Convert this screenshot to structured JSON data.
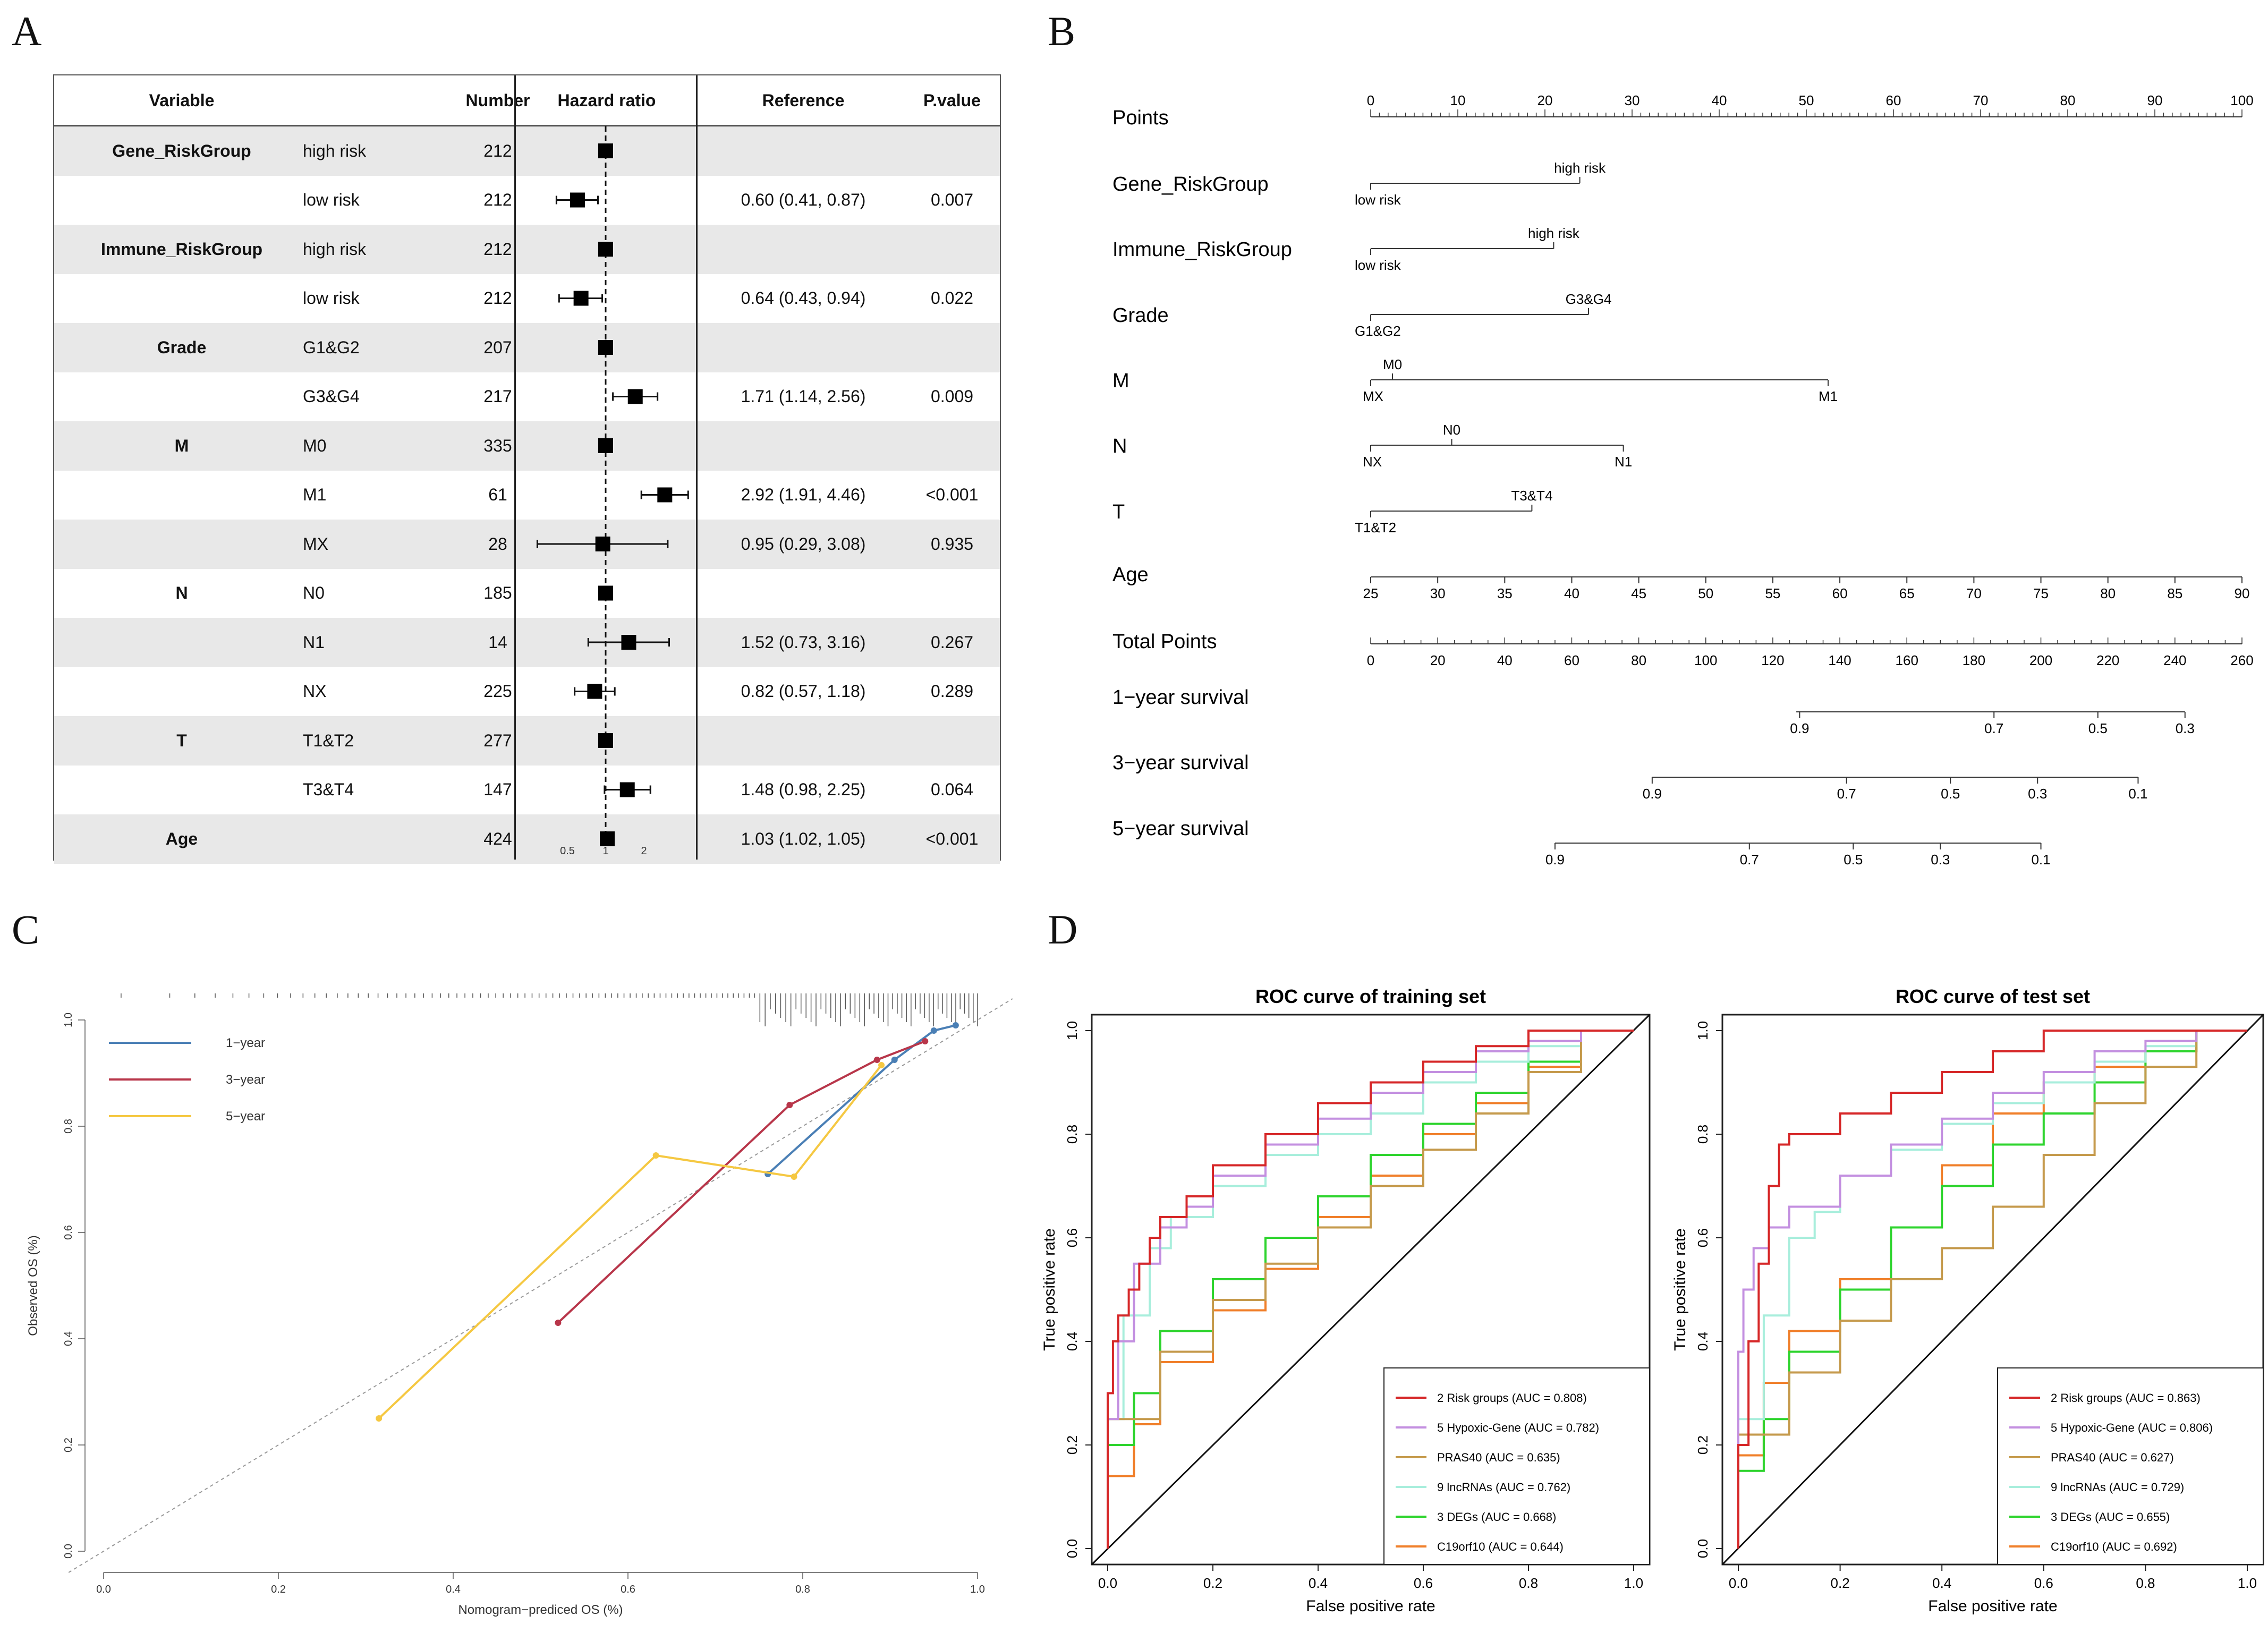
{
  "panel_letters": {
    "a": "A",
    "b": "B",
    "c": "C",
    "d": "D"
  },
  "panel_a": {
    "headers": {
      "variable": "Variable",
      "number": "Number",
      "hazard_ratio": "Hazard ratio",
      "reference": "Reference",
      "pvalue": "P.value"
    },
    "rows": [
      {
        "variable": "Gene_RiskGroup",
        "level": "high risk",
        "number": "212",
        "reference": "",
        "pvalue": "",
        "hr": 1.0,
        "lo": null,
        "hi": null,
        "shaded": true
      },
      {
        "variable": "",
        "level": "low risk",
        "number": "212",
        "reference": "0.60 (0.41, 0.87)",
        "pvalue": "0.007",
        "hr": 0.6,
        "lo": 0.41,
        "hi": 0.87,
        "shaded": false
      },
      {
        "variable": "Immune_RiskGroup",
        "level": "high risk",
        "number": "212",
        "reference": "",
        "pvalue": "",
        "hr": 1.0,
        "lo": null,
        "hi": null,
        "shaded": true
      },
      {
        "variable": "",
        "level": "low risk",
        "number": "212",
        "reference": "0.64 (0.43, 0.94)",
        "pvalue": "0.022",
        "hr": 0.64,
        "lo": 0.43,
        "hi": 0.94,
        "shaded": false
      },
      {
        "variable": "Grade",
        "level": "G1&G2",
        "number": "207",
        "reference": "",
        "pvalue": "",
        "hr": 1.0,
        "lo": null,
        "hi": null,
        "shaded": true
      },
      {
        "variable": "",
        "level": "G3&G4",
        "number": "217",
        "reference": "1.71 (1.14, 2.56)",
        "pvalue": "0.009",
        "hr": 1.71,
        "lo": 1.14,
        "hi": 2.56,
        "shaded": false
      },
      {
        "variable": "M",
        "level": "M0",
        "number": "335",
        "reference": "",
        "pvalue": "",
        "hr": 1.0,
        "lo": null,
        "hi": null,
        "shaded": true
      },
      {
        "variable": "",
        "level": "M1",
        "number": "61",
        "reference": "2.92 (1.91, 4.46)",
        "pvalue": "<0.001",
        "hr": 2.92,
        "lo": 1.91,
        "hi": 4.46,
        "shaded": false
      },
      {
        "variable": "",
        "level": "MX",
        "number": "28",
        "reference": "0.95 (0.29, 3.08)",
        "pvalue": "0.935",
        "hr": 0.95,
        "lo": 0.29,
        "hi": 3.08,
        "shaded": true
      },
      {
        "variable": "N",
        "level": "N0",
        "number": "185",
        "reference": "",
        "pvalue": "",
        "hr": 1.0,
        "lo": null,
        "hi": null,
        "shaded": false
      },
      {
        "variable": "",
        "level": "N1",
        "number": "14",
        "reference": "1.52 (0.73, 3.16)",
        "pvalue": "0.267",
        "hr": 1.52,
        "lo": 0.73,
        "hi": 3.16,
        "shaded": true
      },
      {
        "variable": "",
        "level": "NX",
        "number": "225",
        "reference": "0.82 (0.57, 1.18)",
        "pvalue": "0.289",
        "hr": 0.82,
        "lo": 0.57,
        "hi": 1.18,
        "shaded": false
      },
      {
        "variable": "T",
        "level": "T1&T2",
        "number": "277",
        "reference": "",
        "pvalue": "",
        "hr": 1.0,
        "lo": null,
        "hi": null,
        "shaded": true
      },
      {
        "variable": "",
        "level": "T3&T4",
        "number": "147",
        "reference": "1.48 (0.98, 2.25)",
        "pvalue": "0.064",
        "hr": 1.48,
        "lo": 0.98,
        "hi": 2.25,
        "shaded": false
      },
      {
        "variable": "Age",
        "level": "",
        "number": "424",
        "reference": "1.03 (1.02, 1.05)",
        "pvalue": "<0.001",
        "hr": 1.03,
        "lo": 1.02,
        "hi": 1.05,
        "shaded": true
      }
    ],
    "axis_ticks": [
      "0.5",
      "1",
      "2"
    ]
  },
  "panel_b": {
    "points": {
      "label": "Points",
      "ticks": [
        "0",
        "10",
        "20",
        "30",
        "40",
        "50",
        "60",
        "70",
        "80",
        "90",
        "100"
      ]
    },
    "vars": [
      {
        "label": "Gene_RiskGroup",
        "low": "low risk",
        "high": "high risk",
        "low_pts": 0,
        "high_pts": 24
      },
      {
        "label": "Immune_RiskGroup",
        "low": "low risk",
        "high": "high risk",
        "low_pts": 0,
        "high_pts": 21
      },
      {
        "label": "Grade",
        "low": "G1&G2",
        "high": "G3&G4",
        "low_pts": 0,
        "high_pts": 25
      }
    ],
    "m": {
      "label": "M",
      "mx": "MX",
      "m0": "M0",
      "m1": "M1",
      "mx_pts": 0,
      "m0_pts": 2.5,
      "m1_pts": 52.5
    },
    "n": {
      "label": "N",
      "nx": "NX",
      "n0": "N0",
      "n1": "N1",
      "nx_pts": 0,
      "n0_pts": 9.3,
      "n1_pts": 29
    },
    "t": {
      "label": "T",
      "t12": "T1&T2",
      "t34": "T3&T4",
      "t12_pts": 0,
      "t34_pts": 18.5
    },
    "age": {
      "label": "Age",
      "ticks": [
        "25",
        "30",
        "35",
        "40",
        "45",
        "50",
        "55",
        "60",
        "65",
        "70",
        "75",
        "80",
        "85",
        "90"
      ]
    },
    "total": {
      "label": "Total Points",
      "ticks": [
        "0",
        "20",
        "40",
        "60",
        "80",
        "100",
        "120",
        "140",
        "160",
        "180",
        "200",
        "220",
        "240",
        "260"
      ]
    },
    "survival": [
      {
        "label": "1−year survival",
        "ticks": [
          {
            "v": "0.9",
            "p": 128
          },
          {
            "v": "0.7",
            "p": 186
          },
          {
            "v": "0.5",
            "p": 217
          },
          {
            "v": "0.3",
            "p": 243
          }
        ],
        "start": 127,
        "end": 243
      },
      {
        "label": "3−year survival",
        "ticks": [
          {
            "v": "0.9",
            "p": 84
          },
          {
            "v": "0.7",
            "p": 142
          },
          {
            "v": "0.5",
            "p": 173
          },
          {
            "v": "0.3",
            "p": 199
          },
          {
            "v": "0.1",
            "p": 229
          }
        ],
        "start": 84,
        "end": 229
      },
      {
        "label": "5−year survival",
        "ticks": [
          {
            "v": "0.9",
            "p": 55
          },
          {
            "v": "0.7",
            "p": 113
          },
          {
            "v": "0.5",
            "p": 144
          },
          {
            "v": "0.3",
            "p": 170
          },
          {
            "v": "0.1",
            "p": 200
          }
        ],
        "start": 55,
        "end": 200
      }
    ]
  },
  "chart_data": [
    {
      "type": "line",
      "title": "",
      "xlabel": "Nomogram−prediced OS (%)",
      "ylabel": "Observed OS (%)",
      "xlim": [
        0,
        1
      ],
      "ylim": [
        0,
        1
      ],
      "xticks": [
        "0.0",
        "0.2",
        "0.4",
        "0.6",
        "0.8",
        "1.0"
      ],
      "yticks": [
        "0.0",
        "0.2",
        "0.4",
        "0.6",
        "0.8",
        "1.0"
      ],
      "legend": "top-left",
      "series": [
        {
          "name": "1−year",
          "color": "#4a7fb5",
          "x": [
            0.76,
            0.905,
            0.95,
            0.975
          ],
          "y": [
            0.71,
            0.925,
            0.98,
            0.99
          ]
        },
        {
          "name": "3−year",
          "color": "#b8364a",
          "x": [
            0.52,
            0.785,
            0.885,
            0.94
          ],
          "y": [
            0.43,
            0.84,
            0.925,
            0.96
          ]
        },
        {
          "name": "5−year",
          "color": "#f5c842",
          "x": [
            0.315,
            0.632,
            0.79,
            0.89
          ],
          "y": [
            0.25,
            0.745,
            0.705,
            0.915
          ]
        }
      ]
    },
    {
      "type": "line",
      "title": "ROC curve of training set",
      "xlabel": "False positive rate",
      "ylabel": "True positive rate",
      "xlim": [
        0,
        1
      ],
      "ylim": [
        0,
        1
      ],
      "xticks": [
        "0.0",
        "0.2",
        "0.4",
        "0.6",
        "0.8",
        "1.0"
      ],
      "yticks": [
        "0.0",
        "0.2",
        "0.4",
        "0.6",
        "0.8",
        "1.0"
      ],
      "legend": "bottom-right",
      "series": [
        {
          "name": "2 Risk groups (AUC = 0.808)",
          "color": "#d62728",
          "x": [
            0,
            0.01,
            0.02,
            0.04,
            0.06,
            0.08,
            0.1,
            0.15,
            0.2,
            0.3,
            0.4,
            0.5,
            0.6,
            0.7,
            0.8,
            0.9,
            1.0
          ],
          "y": [
            0,
            0.3,
            0.4,
            0.45,
            0.5,
            0.55,
            0.6,
            0.64,
            0.68,
            0.74,
            0.8,
            0.86,
            0.9,
            0.94,
            0.97,
            1.0,
            1.0
          ]
        },
        {
          "name": "5 Hypoxic-Gene (AUC = 0.782)",
          "color": "#c38fe0",
          "x": [
            0,
            0.02,
            0.05,
            0.1,
            0.15,
            0.2,
            0.3,
            0.4,
            0.5,
            0.6,
            0.7,
            0.8,
            0.9,
            1.0
          ],
          "y": [
            0,
            0.25,
            0.4,
            0.55,
            0.62,
            0.66,
            0.72,
            0.78,
            0.83,
            0.88,
            0.92,
            0.96,
            0.98,
            1.0
          ]
        },
        {
          "name": "PRAS40 (AUC = 0.635)",
          "color": "#c59a4c",
          "x": [
            0,
            0.1,
            0.2,
            0.3,
            0.4,
            0.5,
            0.6,
            0.7,
            0.8,
            0.9,
            1.0
          ],
          "y": [
            0,
            0.25,
            0.38,
            0.48,
            0.55,
            0.62,
            0.7,
            0.77,
            0.84,
            0.92,
            1.0
          ]
        },
        {
          "name": "9 lncRNAs (AUC = 0.762)",
          "color": "#a8eedc",
          "x": [
            0,
            0.03,
            0.08,
            0.12,
            0.2,
            0.3,
            0.4,
            0.5,
            0.6,
            0.7,
            0.8,
            0.9,
            1.0
          ],
          "y": [
            0,
            0.25,
            0.45,
            0.58,
            0.64,
            0.7,
            0.76,
            0.8,
            0.84,
            0.9,
            0.94,
            0.97,
            1.0
          ]
        },
        {
          "name": "3 DEGs (AUC = 0.668)",
          "color": "#2ed42e",
          "x": [
            0,
            0.05,
            0.1,
            0.2,
            0.3,
            0.4,
            0.5,
            0.6,
            0.7,
            0.8,
            0.9,
            1.0
          ],
          "y": [
            0,
            0.2,
            0.3,
            0.42,
            0.52,
            0.6,
            0.68,
            0.76,
            0.82,
            0.88,
            0.94,
            1.0
          ]
        },
        {
          "name": "C19orf10 (AUC = 0.644)",
          "color": "#f07f2a",
          "x": [
            0,
            0.05,
            0.1,
            0.2,
            0.3,
            0.4,
            0.5,
            0.6,
            0.7,
            0.8,
            0.9,
            1.0
          ],
          "y": [
            0,
            0.14,
            0.24,
            0.36,
            0.46,
            0.54,
            0.64,
            0.72,
            0.8,
            0.86,
            0.93,
            1.0
          ]
        }
      ]
    },
    {
      "type": "line",
      "title": "ROC curve of test set",
      "xlabel": "False positive rate",
      "ylabel": "True positive rate",
      "xlim": [
        0,
        1
      ],
      "ylim": [
        0,
        1
      ],
      "xticks": [
        "0.0",
        "0.2",
        "0.4",
        "0.6",
        "0.8",
        "1.0"
      ],
      "yticks": [
        "0.0",
        "0.2",
        "0.4",
        "0.6",
        "0.8",
        "1.0"
      ],
      "legend": "bottom-right",
      "series": [
        {
          "name": "2 Risk groups (AUC = 0.863)",
          "color": "#d62728",
          "x": [
            0,
            0.02,
            0.04,
            0.06,
            0.08,
            0.1,
            0.2,
            0.3,
            0.4,
            0.5,
            0.6,
            0.7,
            0.8,
            0.9,
            1.0
          ],
          "y": [
            0,
            0.2,
            0.4,
            0.55,
            0.7,
            0.78,
            0.8,
            0.84,
            0.88,
            0.92,
            0.96,
            1.0,
            1.0,
            1.0,
            1.0
          ]
        },
        {
          "name": "5 Hypoxic-Gene (AUC = 0.806)",
          "color": "#c38fe0",
          "x": [
            0,
            0.01,
            0.03,
            0.06,
            0.1,
            0.2,
            0.3,
            0.4,
            0.5,
            0.6,
            0.7,
            0.8,
            0.9,
            1.0
          ],
          "y": [
            0,
            0.38,
            0.5,
            0.58,
            0.62,
            0.66,
            0.72,
            0.78,
            0.83,
            0.88,
            0.92,
            0.96,
            0.98,
            1.0
          ]
        },
        {
          "name": "PRAS40 (AUC = 0.627)",
          "color": "#c59a4c",
          "x": [
            0,
            0.1,
            0.2,
            0.3,
            0.4,
            0.5,
            0.6,
            0.7,
            0.8,
            0.9,
            1.0
          ],
          "y": [
            0,
            0.22,
            0.34,
            0.44,
            0.52,
            0.58,
            0.66,
            0.76,
            0.86,
            0.93,
            1.0
          ]
        },
        {
          "name": "9 lncRNAs (AUC = 0.729)",
          "color": "#a8eedc",
          "x": [
            0,
            0.05,
            0.1,
            0.15,
            0.2,
            0.3,
            0.4,
            0.5,
            0.6,
            0.7,
            0.8,
            0.9,
            1.0
          ],
          "y": [
            0,
            0.25,
            0.45,
            0.6,
            0.65,
            0.72,
            0.77,
            0.82,
            0.86,
            0.9,
            0.94,
            0.97,
            1.0
          ]
        },
        {
          "name": "3 DEGs (AUC = 0.655)",
          "color": "#2ed42e",
          "x": [
            0,
            0.05,
            0.1,
            0.2,
            0.3,
            0.4,
            0.5,
            0.6,
            0.7,
            0.8,
            0.9,
            1.0
          ],
          "y": [
            0,
            0.15,
            0.25,
            0.38,
            0.5,
            0.62,
            0.7,
            0.78,
            0.84,
            0.9,
            0.96,
            1.0
          ]
        },
        {
          "name": "C19orf10 (AUC = 0.692)",
          "color": "#f07f2a",
          "x": [
            0,
            0.05,
            0.1,
            0.2,
            0.3,
            0.4,
            0.5,
            0.6,
            0.7,
            0.8,
            0.9,
            1.0
          ],
          "y": [
            0,
            0.18,
            0.32,
            0.42,
            0.52,
            0.62,
            0.74,
            0.84,
            0.9,
            0.93,
            0.96,
            1.0
          ]
        }
      ]
    }
  ]
}
